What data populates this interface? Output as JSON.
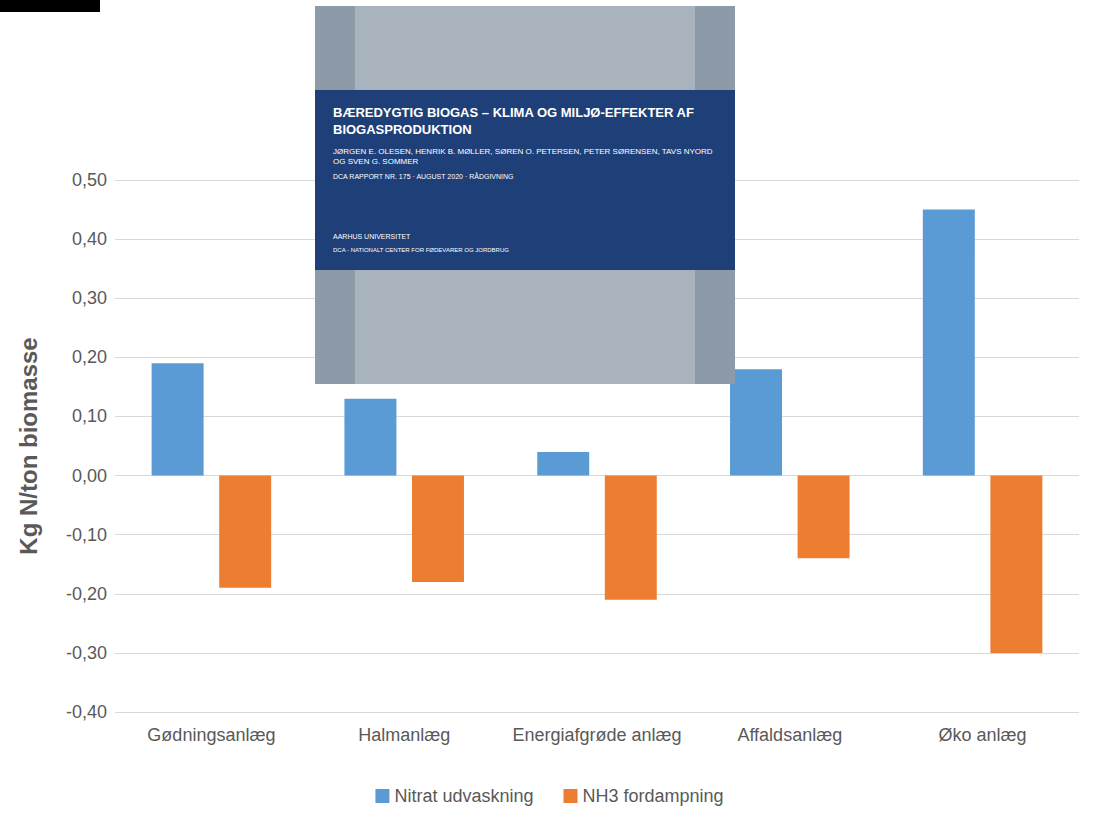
{
  "chart_data": {
    "type": "bar",
    "categories": [
      "Gødningsanlæg",
      "Halmanlæg",
      "Energiafgrøde anlæg",
      "Affaldsanlæg",
      "Øko anlæg"
    ],
    "series": [
      {
        "name": "Nitrat udvaskning",
        "color": "#5b9bd5",
        "values": [
          0.19,
          0.13,
          0.04,
          0.18,
          0.45
        ]
      },
      {
        "name": "NH3 fordampning",
        "color": "#ed7d31",
        "values": [
          -0.19,
          -0.18,
          -0.21,
          -0.14,
          -0.3
        ]
      }
    ],
    "y_label": "Kg N/ton biomasse",
    "ylim": [
      -0.4,
      0.5
    ],
    "yticks": [
      {
        "value": -0.4,
        "label": "-0,40"
      },
      {
        "value": -0.3,
        "label": "-0,30"
      },
      {
        "value": -0.2,
        "label": "-0,20"
      },
      {
        "value": -0.1,
        "label": "-0,10"
      },
      {
        "value": 0,
        "label": "0,00"
      },
      {
        "value": 0.1,
        "label": "0,10"
      },
      {
        "value": 0.2,
        "label": "0,20"
      },
      {
        "value": 0.3,
        "label": "0,30"
      },
      {
        "value": 0.4,
        "label": "0,40"
      },
      {
        "value": 0.5,
        "label": "0,50"
      }
    ],
    "annotations": [
      "BÆREDYGTIG BIOGAS – KLIMA OG MILJØ-EFFEKTER AF BIOGASPRODUKTION",
      "JØRGEN E. OLESEN, HENRIK B. MØLLER, SØREN O. PETERSEN, PETER SØRENSEN, TAVS NYORD OG SVEN G. SOMMER",
      "DCA RAPPORT NR. 175 · AUGUST 2020 · RÅDGIVNING",
      "AARHUS UNIVERSITET",
      "DCA - NATIONALT CENTER FOR FØDEVARER OG JORDBRUG"
    ],
    "grid": true,
    "legend": "bottom"
  }
}
